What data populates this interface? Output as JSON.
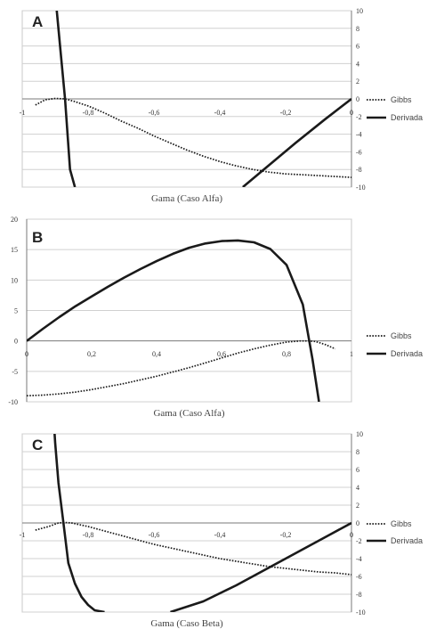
{
  "chart_data": [
    {
      "type": "line",
      "panel_label": "A",
      "xlabel": "Gama (Caso Alfa)",
      "ylabel": "",
      "xlim": [
        -1,
        0
      ],
      "ylim": [
        -10,
        10
      ],
      "x_ticks": [
        "-1",
        "-0,8",
        "-0,6",
        "-0,4",
        "-0,2",
        "0"
      ],
      "y_ticks": [
        "10",
        "8",
        "6",
        "4",
        "2",
        "0",
        "-2",
        "-4",
        "-6",
        "-8",
        "-10"
      ],
      "y_axis_side": "right",
      "grid": "horizontal",
      "legend_position": "right",
      "series": [
        {
          "name": "Gibbs",
          "style": "dotted",
          "x": [
            -0.96,
            -0.93,
            -0.9,
            -0.87,
            -0.84,
            -0.8,
            -0.75,
            -0.7,
            -0.65,
            -0.6,
            -0.55,
            -0.5,
            -0.45,
            -0.4,
            -0.35,
            -0.3,
            -0.25,
            -0.2,
            -0.15,
            -0.1,
            -0.05,
            0
          ],
          "y": [
            -0.7,
            -0.1,
            0.05,
            0,
            -0.3,
            -0.8,
            -1.6,
            -2.5,
            -3.3,
            -4.2,
            -5.0,
            -5.8,
            -6.5,
            -7.1,
            -7.6,
            -8.0,
            -8.3,
            -8.5,
            -8.6,
            -8.7,
            -8.8,
            -8.9
          ]
        },
        {
          "name": "Derivada",
          "style": "solid",
          "x": [
            -0.9,
            -0.895,
            -0.885,
            -0.87,
            -0.855,
            -0.84
          ],
          "y": [
            11.5,
            10,
            6,
            0,
            -8,
            -10
          ]
        },
        {
          "name": "Derivada",
          "style": "solid",
          "x": [
            -0.33,
            -0.25,
            -0.17,
            -0.08,
            0
          ],
          "y": [
            -10,
            -7.5,
            -5,
            -2.3,
            0
          ]
        }
      ]
    },
    {
      "type": "line",
      "panel_label": "B",
      "xlabel": "Gama (Caso Alfa)",
      "ylabel": "",
      "xlim": [
        0,
        1
      ],
      "ylim": [
        -10,
        20
      ],
      "x_ticks": [
        "0",
        "0,2",
        "0,4",
        "0,6",
        "0,8",
        "1"
      ],
      "y_ticks": [
        "20",
        "15",
        "10",
        "5",
        "0",
        "-5",
        "-10"
      ],
      "y_axis_side": "left",
      "grid": "horizontal",
      "legend_position": "right",
      "series": [
        {
          "name": "Gibbs",
          "style": "dotted",
          "x": [
            0,
            0.05,
            0.1,
            0.15,
            0.2,
            0.25,
            0.3,
            0.35,
            0.4,
            0.45,
            0.5,
            0.55,
            0.6,
            0.65,
            0.7,
            0.75,
            0.8,
            0.84,
            0.87,
            0.89,
            0.92,
            0.95
          ],
          "y": [
            -9.0,
            -8.9,
            -8.7,
            -8.4,
            -8.0,
            -7.5,
            -7.0,
            -6.4,
            -5.8,
            -5.1,
            -4.4,
            -3.6,
            -2.8,
            -2.0,
            -1.3,
            -0.7,
            -0.2,
            0,
            0,
            -0.1,
            -0.6,
            -1.3
          ]
        },
        {
          "name": "Derivada",
          "style": "solid",
          "x": [
            0,
            0.05,
            0.1,
            0.15,
            0.2,
            0.25,
            0.3,
            0.35,
            0.4,
            0.45,
            0.5,
            0.55,
            0.6,
            0.65,
            0.7,
            0.75,
            0.8,
            0.85,
            0.88,
            0.9
          ],
          "y": [
            0,
            2,
            3.9,
            5.7,
            7.3,
            8.9,
            10.4,
            11.8,
            13.1,
            14.3,
            15.3,
            16.0,
            16.4,
            16.5,
            16.2,
            15.1,
            12.5,
            6,
            -3,
            -10
          ]
        }
      ]
    },
    {
      "type": "line",
      "panel_label": "C",
      "xlabel": "Gama (Caso Beta)",
      "ylabel": "",
      "xlim": [
        -1,
        0
      ],
      "ylim": [
        -10,
        10
      ],
      "x_ticks": [
        "-1",
        "-0,8",
        "-0,6",
        "-0,4",
        "-0,2",
        "0"
      ],
      "y_ticks": [
        "10",
        "8",
        "6",
        "4",
        "2",
        "0",
        "-2",
        "-4",
        "-6",
        "-8",
        "-10"
      ],
      "y_axis_side": "right",
      "grid": "horizontal",
      "legend_position": "right",
      "series": [
        {
          "name": "Gibbs",
          "style": "dotted",
          "x": [
            -0.96,
            -0.92,
            -0.89,
            -0.87,
            -0.85,
            -0.8,
            -0.75,
            -0.7,
            -0.65,
            -0.6,
            -0.55,
            -0.5,
            -0.45,
            -0.4,
            -0.35,
            -0.3,
            -0.25,
            -0.2,
            -0.15,
            -0.1,
            -0.05,
            0
          ],
          "y": [
            -0.8,
            -0.4,
            0,
            0.05,
            0,
            -0.4,
            -0.9,
            -1.4,
            -1.9,
            -2.4,
            -2.8,
            -3.2,
            -3.6,
            -4.0,
            -4.3,
            -4.6,
            -4.9,
            -5.1,
            -5.3,
            -5.5,
            -5.6,
            -5.8
          ]
        },
        {
          "name": "Derivada",
          "style": "solid",
          "x": [
            -0.905,
            -0.9,
            -0.89,
            -0.875,
            -0.86,
            -0.84,
            -0.82,
            -0.8,
            -0.78,
            -0.75
          ],
          "y": [
            12,
            9,
            4.5,
            0,
            -4.5,
            -6.8,
            -8.3,
            -9.2,
            -9.8,
            -10
          ]
        },
        {
          "name": "Derivada",
          "style": "solid",
          "x": [
            -0.55,
            -0.45,
            -0.35,
            -0.25,
            -0.15,
            -0.07,
            0
          ],
          "y": [
            -10,
            -8.8,
            -7.0,
            -5.0,
            -3.0,
            -1.4,
            0
          ]
        }
      ]
    }
  ]
}
